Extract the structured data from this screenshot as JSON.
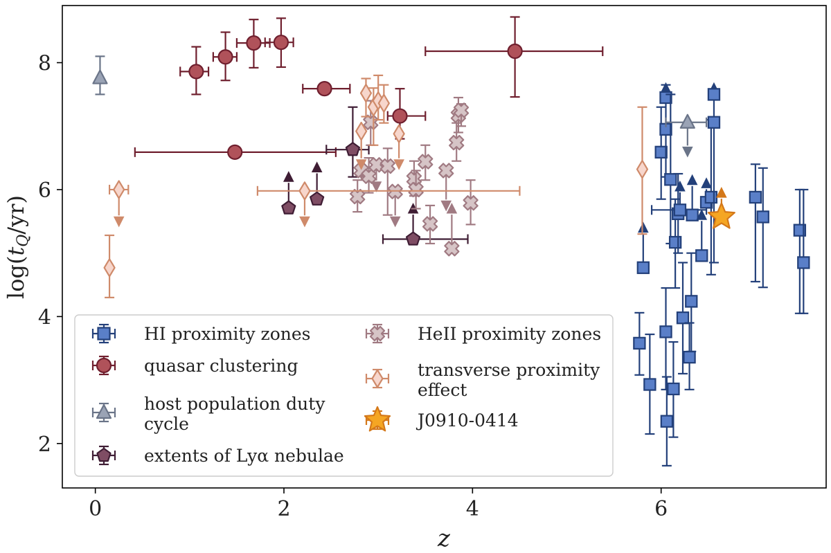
{
  "chart_data": {
    "type": "scatter",
    "xlabel": "z",
    "ylabel": "log(t_Q/yr)",
    "xlim": [
      -0.35,
      7.75
    ],
    "ylim": [
      1.3,
      8.9
    ],
    "xticks": [
      0,
      2,
      4,
      6
    ],
    "yticks": [
      2,
      4,
      6,
      8
    ],
    "xtick_labels": [
      "0",
      "2",
      "4",
      "6"
    ],
    "ytick_labels": [
      "2",
      "4",
      "6",
      "8"
    ],
    "legend_position": "lower-left",
    "series": [
      {
        "name": "HI proximity zones",
        "legend_label": "HI proximity zones",
        "marker": "square",
        "face": "#5a7fc8",
        "edge": "#23407a",
        "points": [
          {
            "x": 5.81,
            "y": 4.77,
            "ylo": 4.77,
            "yhi": 5.35,
            "up": true
          },
          {
            "x": 5.77,
            "y": 3.58,
            "ylo": 3.08,
            "yhi": 4.06
          },
          {
            "x": 5.88,
            "y": 2.93,
            "ylo": 2.15,
            "yhi": 3.72
          },
          {
            "x": 6.05,
            "y": 3.76,
            "ylo": 2.85,
            "yhi": 4.45
          },
          {
            "x": 6.06,
            "y": 2.35,
            "ylo": 1.65,
            "yhi": 3.05
          },
          {
            "x": 6.13,
            "y": 2.86,
            "ylo": 2.1,
            "yhi": 3.6
          },
          {
            "x": 6.0,
            "y": 6.59,
            "ylo": 5.85,
            "yhi": 7.3
          },
          {
            "x": 6.05,
            "y": 6.95,
            "ylo": 6.2,
            "yhi": 7.65
          },
          {
            "x": 6.05,
            "y": 7.45,
            "ylo": 7.45,
            "yhi": 7.55,
            "up": true
          },
          {
            "x": 6.1,
            "y": 6.16,
            "ylo": 5.15,
            "yhi": 7.5
          },
          {
            "x": 6.15,
            "y": 5.17,
            "ylo": 4.45,
            "yhi": 5.85
          },
          {
            "x": 6.18,
            "y": 5.62,
            "ylo": 5.0,
            "yhi": 6.25
          },
          {
            "x": 6.2,
            "y": 5.68,
            "xlo": 5.9,
            "xhi": 6.48,
            "ylo": 5.68,
            "yhi": 6.0,
            "up": true
          },
          {
            "x": 6.23,
            "y": 3.98,
            "ylo": 3.1,
            "yhi": 4.85
          },
          {
            "x": 6.3,
            "y": 3.36,
            "ylo": 2.85,
            "yhi": 3.9
          },
          {
            "x": 6.32,
            "y": 4.24,
            "ylo": 3.45,
            "yhi": 5.0
          },
          {
            "x": 6.33,
            "y": 5.6,
            "ylo": 5.6,
            "yhi": 6.1,
            "up": true
          },
          {
            "x": 6.43,
            "y": 4.96,
            "ylo": 4.96,
            "yhi": 5.55,
            "up": true
          },
          {
            "x": 6.48,
            "y": 5.8,
            "ylo": 5.8,
            "yhi": 6.05,
            "up": true
          },
          {
            "x": 6.53,
            "y": 5.88,
            "ylo": 4.66,
            "yhi": 7.1
          },
          {
            "x": 6.56,
            "y": 7.06,
            "ylo": 4.85,
            "yhi": 7.5
          },
          {
            "x": 6.56,
            "y": 7.5,
            "ylo": 7.5,
            "yhi": 7.55,
            "up": true
          },
          {
            "x": 7.0,
            "y": 5.88,
            "ylo": 4.55,
            "yhi": 6.4
          },
          {
            "x": 7.08,
            "y": 5.57,
            "ylo": 4.46,
            "yhi": 6.34
          },
          {
            "x": 7.47,
            "y": 5.36,
            "ylo": 4.05,
            "yhi": 6.0
          },
          {
            "x": 7.51,
            "y": 4.85,
            "ylo": 4.05,
            "yhi": 6.0
          }
        ]
      },
      {
        "name": "quasar clustering",
        "legend_label": "quasar clustering",
        "marker": "circle",
        "face": "#b0525a",
        "edge": "#6f1f2e",
        "points": [
          {
            "x": 1.07,
            "y": 7.86,
            "xlo": 0.9,
            "xhi": 1.2,
            "ylo": 7.5,
            "yhi": 8.25
          },
          {
            "x": 1.38,
            "y": 8.09,
            "xlo": 1.25,
            "xhi": 1.5,
            "ylo": 7.72,
            "yhi": 8.48
          },
          {
            "x": 1.68,
            "y": 8.31,
            "xlo": 1.5,
            "xhi": 1.85,
            "ylo": 7.92,
            "yhi": 8.68
          },
          {
            "x": 1.97,
            "y": 8.32,
            "xlo": 1.8,
            "xhi": 2.1,
            "ylo": 7.93,
            "yhi": 8.7
          },
          {
            "x": 4.45,
            "y": 8.18,
            "xlo": 3.5,
            "xhi": 5.38,
            "ylo": 7.46,
            "yhi": 8.72
          },
          {
            "x": 2.43,
            "y": 7.59,
            "xlo": 2.2,
            "xhi": 2.7,
            "ylo": 7.59,
            "yhi": 7.59
          },
          {
            "x": 3.23,
            "y": 7.16,
            "xlo": 3.1,
            "xhi": 3.5,
            "ylo": 6.8,
            "yhi": 7.59
          },
          {
            "x": 1.48,
            "y": 6.59,
            "xlo": 0.42,
            "xhi": 2.55,
            "ylo": 6.59,
            "yhi": 6.59
          }
        ]
      },
      {
        "name": "host population duty cycle",
        "legend_label_lines": [
          "host population duty",
          "cycle"
        ],
        "marker": "triangle",
        "face": "#9aa3b5",
        "edge": "#6a7488",
        "points": [
          {
            "x": 0.05,
            "y": 7.76,
            "ylo": 7.5,
            "yhi": 8.1
          },
          {
            "x": 6.28,
            "y": 7.06,
            "xlo": 6.05,
            "xhi": 6.48,
            "ylo": 6.65,
            "yhi": 7.06,
            "down": true
          }
        ]
      },
      {
        "name": "extents of Lyα nebulae",
        "legend_label": "extents of Lyα nebulae",
        "marker": "pentagon",
        "face": "#7f4d64",
        "edge": "#3f1d34",
        "points": [
          {
            "x": 2.05,
            "y": 5.71,
            "ylo": 5.71,
            "yhi": 6.15,
            "up": true
          },
          {
            "x": 2.35,
            "y": 5.85,
            "ylo": 5.85,
            "yhi": 6.3,
            "up": true
          },
          {
            "x": 2.73,
            "y": 6.63,
            "xlo": 2.45,
            "xhi": 2.9,
            "ylo": 6.2,
            "yhi": 7.3
          },
          {
            "x": 3.37,
            "y": 5.22,
            "xlo": 3.05,
            "xhi": 3.95,
            "ylo": 5.22,
            "yhi": 5.65,
            "up": true
          }
        ]
      },
      {
        "name": "HeII proximity zones",
        "legend_label": "HeII proximity zones",
        "marker": "cross",
        "face": "#d6c4c6",
        "edge": "#a07a82",
        "points": [
          {
            "x": 2.78,
            "y": 5.89,
            "ylo": 5.65,
            "yhi": 6.15
          },
          {
            "x": 2.82,
            "y": 6.3,
            "ylo": 6.3,
            "yhi": 6.55,
            "down": true
          },
          {
            "x": 2.9,
            "y": 6.21,
            "ylo": 5.95,
            "yhi": 6.5
          },
          {
            "x": 2.92,
            "y": 7.06,
            "ylo": 6.7,
            "yhi": 7.4
          },
          {
            "x": 2.98,
            "y": 6.39,
            "ylo": 6.1,
            "yhi": 6.65,
            "down": true
          },
          {
            "x": 3.1,
            "y": 6.37,
            "ylo": 5.6,
            "yhi": 6.65
          },
          {
            "x": 3.18,
            "y": 5.97,
            "ylo": 5.55,
            "yhi": 6.35,
            "down": true
          },
          {
            "x": 3.38,
            "y": 6.17,
            "ylo": 5.9,
            "yhi": 6.45
          },
          {
            "x": 3.4,
            "y": 6.0,
            "ylo": 5.7,
            "yhi": 6.3
          },
          {
            "x": 3.5,
            "y": 6.44,
            "ylo": 6.15,
            "yhi": 6.7
          },
          {
            "x": 3.55,
            "y": 5.46,
            "ylo": 5.15,
            "yhi": 5.75
          },
          {
            "x": 3.72,
            "y": 6.3,
            "ylo": 5.8,
            "yhi": 6.3,
            "down": true
          },
          {
            "x": 3.78,
            "y": 5.07,
            "ylo": 5.07,
            "yhi": 5.65,
            "up": true
          },
          {
            "x": 3.83,
            "y": 6.74,
            "ylo": 6.45,
            "yhi": 7.05
          },
          {
            "x": 3.85,
            "y": 7.17,
            "ylo": 6.9,
            "yhi": 7.45
          },
          {
            "x": 3.88,
            "y": 7.25,
            "ylo": 7.0,
            "yhi": 7.35
          },
          {
            "x": 3.98,
            "y": 5.79,
            "ylo": 5.45,
            "yhi": 6.15
          }
        ]
      },
      {
        "name": "transverse proximity effect",
        "legend_label_lines": [
          "transverse proximity",
          "effect"
        ],
        "marker": "diamond",
        "face": "#f7d6cc",
        "edge": "#cf8a6a",
        "points": [
          {
            "x": 0.25,
            "y": 6.0,
            "xlo": 0.15,
            "xhi": 0.35,
            "ylo": 5.55,
            "yhi": 6.0,
            "down": true
          },
          {
            "x": 0.15,
            "y": 4.77,
            "ylo": 4.3,
            "yhi": 5.28
          },
          {
            "x": 2.22,
            "y": 5.98,
            "xlo": 1.72,
            "xhi": 4.5,
            "ylo": 5.55,
            "yhi": 5.98,
            "down": true
          },
          {
            "x": 2.82,
            "y": 6.92,
            "ylo": 6.45,
            "yhi": 7.15,
            "down": true
          },
          {
            "x": 2.87,
            "y": 7.52,
            "ylo": 7.15,
            "yhi": 7.75
          },
          {
            "x": 2.95,
            "y": 7.3,
            "ylo": 6.7,
            "yhi": 7.6
          },
          {
            "x": 3.0,
            "y": 7.4,
            "ylo": 7.1,
            "yhi": 7.8
          },
          {
            "x": 3.06,
            "y": 7.36,
            "ylo": 7.05,
            "yhi": 7.65
          },
          {
            "x": 3.22,
            "y": 6.88,
            "ylo": 6.45,
            "yhi": 7.1,
            "down": true
          },
          {
            "x": 5.8,
            "y": 6.32,
            "ylo": 5.3,
            "yhi": 7.3
          }
        ]
      },
      {
        "name": "J0910-0414",
        "legend_label": "J0910-0414",
        "marker": "star",
        "face": "#f5a623",
        "edge": "#d4781a",
        "points": [
          {
            "x": 6.64,
            "y": 5.57,
            "ylo": 5.57,
            "yhi": 5.9,
            "up": true
          }
        ]
      }
    ]
  }
}
